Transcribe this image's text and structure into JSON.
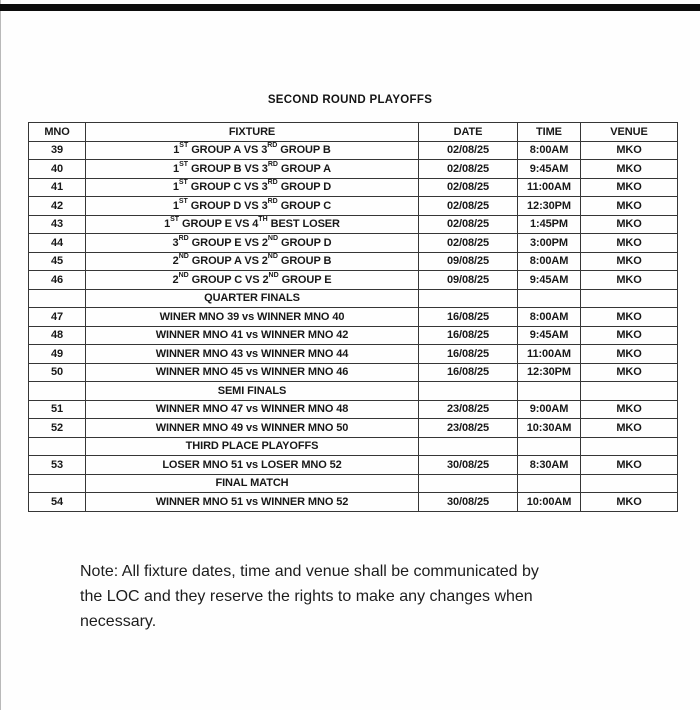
{
  "page": {
    "title": "SECOND ROUND PLAYOFFS"
  },
  "table": {
    "headers": [
      "MNO",
      "FIXTURE",
      "DATE",
      "TIME",
      "VENUE"
    ],
    "rows": [
      {
        "type": "match",
        "mno": "39",
        "fixture": "1^{ST} GROUP A VS 3^{RD} GROUP B",
        "date": "02/08/25",
        "time": "8:00AM",
        "venue": "MKO"
      },
      {
        "type": "match",
        "mno": "40",
        "fixture": "1^{ST} GROUP B VS 3^{RD} GROUP A",
        "date": "02/08/25",
        "time": "9:45AM",
        "venue": "MKO"
      },
      {
        "type": "match",
        "mno": "41",
        "fixture": "1^{ST} GROUP C VS 3^{RD} GROUP D",
        "date": "02/08/25",
        "time": "11:00AM",
        "venue": "MKO"
      },
      {
        "type": "match",
        "mno": "42",
        "fixture": "1^{ST} GROUP D VS 3^{RD} GROUP C",
        "date": "02/08/25",
        "time": "12:30PM",
        "venue": "MKO"
      },
      {
        "type": "match",
        "mno": "43",
        "fixture": "1^{ST} GROUP E VS 4^{TH} BEST LOSER",
        "date": "02/08/25",
        "time": "1:45PM",
        "venue": "MKO"
      },
      {
        "type": "match",
        "mno": "44",
        "fixture": "3^{RD} GROUP E VS 2^{ND} GROUP D",
        "date": "02/08/25",
        "time": "3:00PM",
        "venue": "MKO"
      },
      {
        "type": "match",
        "mno": "45",
        "fixture": "2^{ND} GROUP A VS 2^{ND} GROUP B",
        "date": "09/08/25",
        "time": "8:00AM",
        "venue": "MKO"
      },
      {
        "type": "match",
        "mno": "46",
        "fixture": "2^{ND} GROUP C VS 2^{ND} GROUP E",
        "date": "09/08/25",
        "time": "9:45AM",
        "venue": "MKO"
      },
      {
        "type": "section",
        "label": "QUARTER FINALS"
      },
      {
        "type": "match",
        "mno": "47",
        "fixture": "WINER MNO 39 vs WINNER MNO 40",
        "date": "16/08/25",
        "time": "8:00AM",
        "venue": "MKO"
      },
      {
        "type": "match",
        "mno": "48",
        "fixture": "WINNER MNO 41 vs WINNER MNO 42",
        "date": "16/08/25",
        "time": "9:45AM",
        "venue": "MKO"
      },
      {
        "type": "match",
        "mno": "49",
        "fixture": "WINNER MNO 43 vs WINNER MNO 44",
        "date": "16/08/25",
        "time": "11:00AM",
        "venue": "MKO"
      },
      {
        "type": "match",
        "mno": "50",
        "fixture": "WINNER MNO 45 vs WINNER MNO 46",
        "date": "16/08/25",
        "time": "12:30PM",
        "venue": "MKO"
      },
      {
        "type": "section",
        "label": "SEMI FINALS"
      },
      {
        "type": "match",
        "mno": "51",
        "fixture": "WINNER MNO 47 vs WINNER MNO 48",
        "date": "23/08/25",
        "time": "9:00AM",
        "venue": "MKO"
      },
      {
        "type": "match",
        "mno": "52",
        "fixture": "WINNER MNO 49 vs WINNER MNO 50",
        "date": "23/08/25",
        "time": "10:30AM",
        "venue": "MKO"
      },
      {
        "type": "section",
        "label": "THIRD PLACE PLAYOFFS"
      },
      {
        "type": "match",
        "mno": "53",
        "fixture": "LOSER MNO 51 vs LOSER MNO 52",
        "date": "30/08/25",
        "time": "8:30AM",
        "venue": "MKO"
      },
      {
        "type": "section",
        "label": "FINAL MATCH"
      },
      {
        "type": "match",
        "mno": "54",
        "fixture": "WINNER MNO 51 vs WINNER MNO 52",
        "date": "30/08/25",
        "time": "10:00AM",
        "venue": "MKO"
      }
    ]
  },
  "note": {
    "lines": [
      "Note: All fixture dates, time and venue shall be communicated by",
      "the LOC and they reserve the rights to make any changes when",
      "necessary."
    ]
  }
}
